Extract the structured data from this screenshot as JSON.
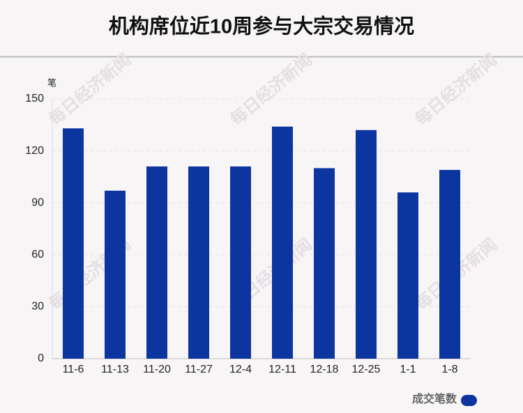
{
  "chart_data": {
    "type": "bar",
    "title": "机构席位近10周参与大宗交易情况",
    "y_label": "笔",
    "categories": [
      "11-6",
      "11-13",
      "11-20",
      "11-27",
      "12-4",
      "12-11",
      "12-18",
      "12-25",
      "1-1",
      "1-8"
    ],
    "series": [
      {
        "name": "成交笔数",
        "color": "#0c35a0",
        "values": [
          133,
          97,
          111,
          111,
          111,
          134,
          110,
          132,
          96,
          109
        ]
      }
    ],
    "ylim": [
      0,
      150
    ],
    "yticks": [
      0,
      30,
      60,
      90,
      120,
      150
    ],
    "grid": true,
    "legend": "bottom-right",
    "watermark": "每日经济新闻"
  }
}
